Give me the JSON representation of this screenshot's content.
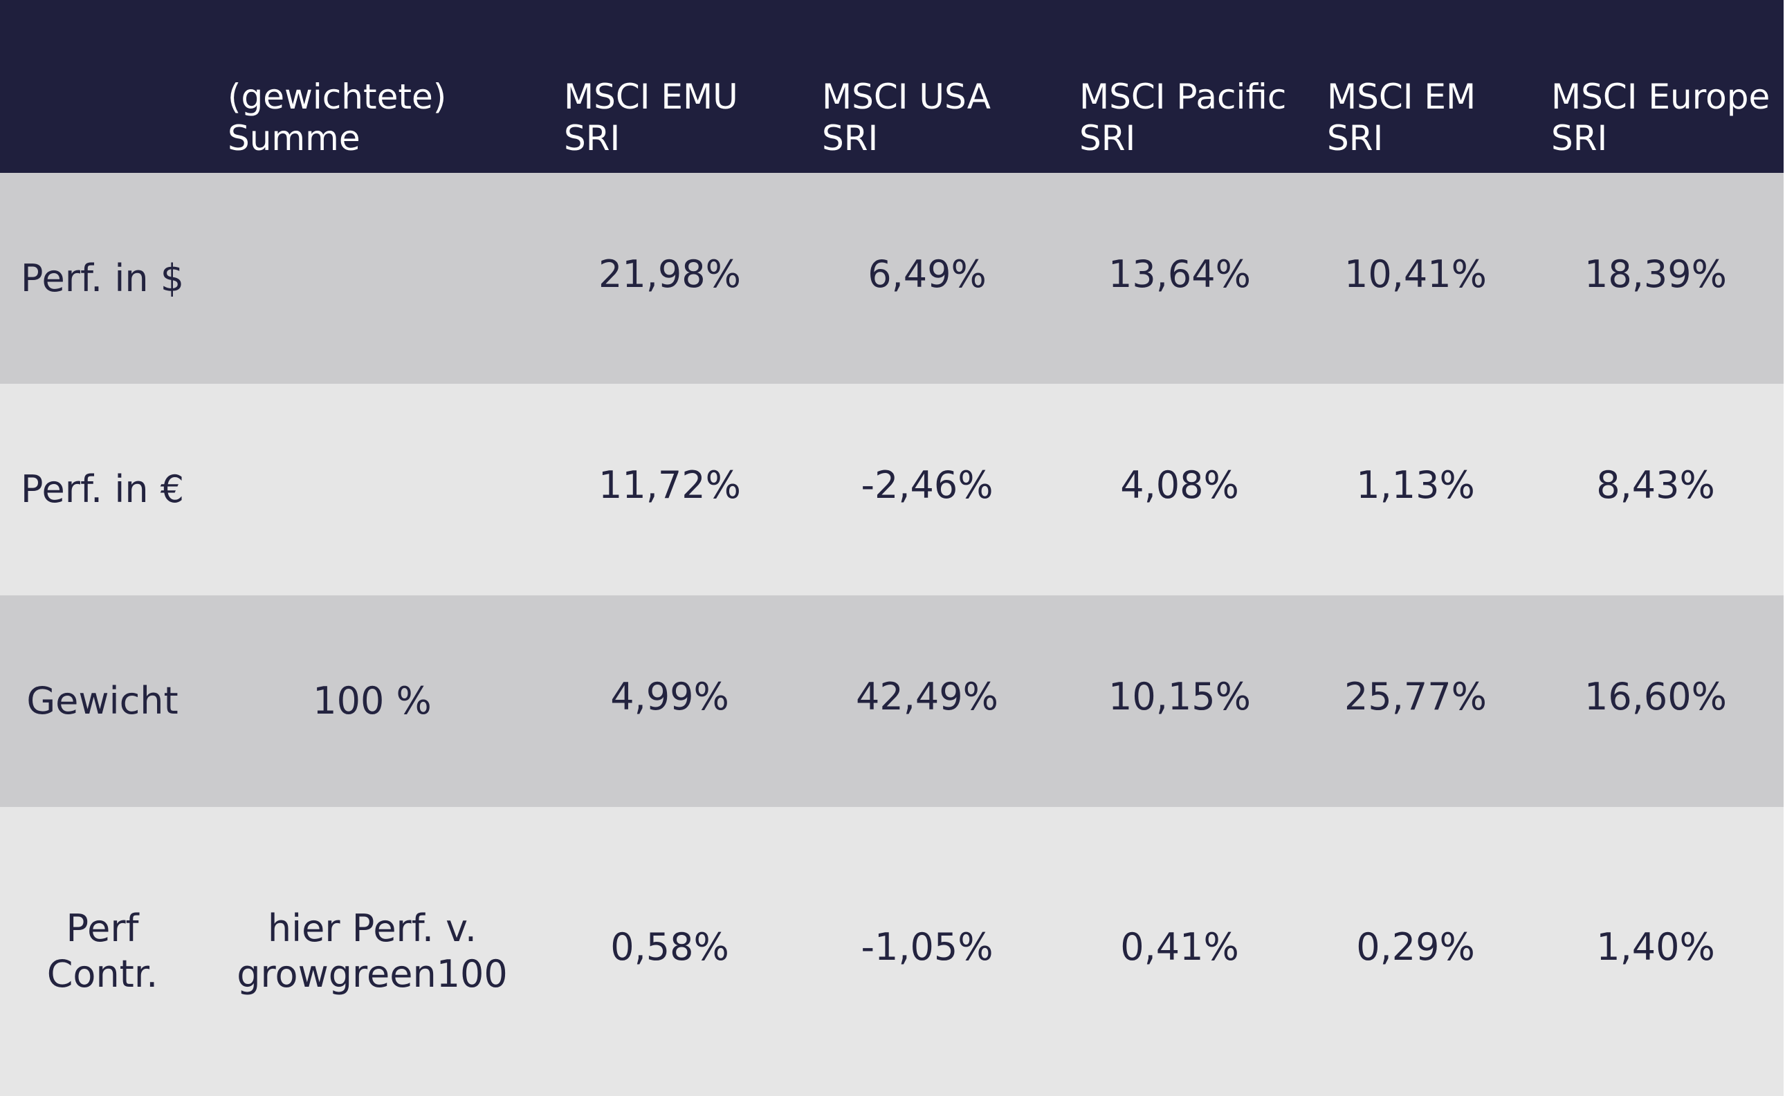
{
  "header": {
    "sum": [
      "(gewichtete)",
      "Summe"
    ],
    "columns": [
      [
        "MSCI EMU",
        "SRI"
      ],
      [
        "MSCI USA",
        "SRI"
      ],
      [
        "MSCI Pacific",
        "SRI"
      ],
      [
        "MSCI EM",
        "SRI"
      ],
      [
        "MSCI Europe",
        "SRI"
      ]
    ]
  },
  "rows": [
    {
      "label": [
        "Perf. in $"
      ],
      "values": [
        "21,98%",
        "6,49%",
        "13,64%",
        "10,41%",
        "18,39%"
      ]
    },
    {
      "label": [
        "Perf. in €"
      ],
      "values": [
        "11,72%",
        "-2,46%",
        "4,08%",
        "1,13%",
        "8,43%"
      ]
    },
    {
      "label": [
        "Gewicht"
      ],
      "sum": [
        "100 %"
      ],
      "values": [
        "4,99%",
        "42,49%",
        "10,15%",
        "25,77%",
        "16,60%"
      ]
    },
    {
      "label": [
        "Perf",
        "Contr."
      ],
      "sum": [
        "hier Perf. v.",
        "growgreen100"
      ],
      "values": [
        "0,58%",
        "-1,05%",
        "0,41%",
        "0,29%",
        "1,40%"
      ]
    }
  ]
}
